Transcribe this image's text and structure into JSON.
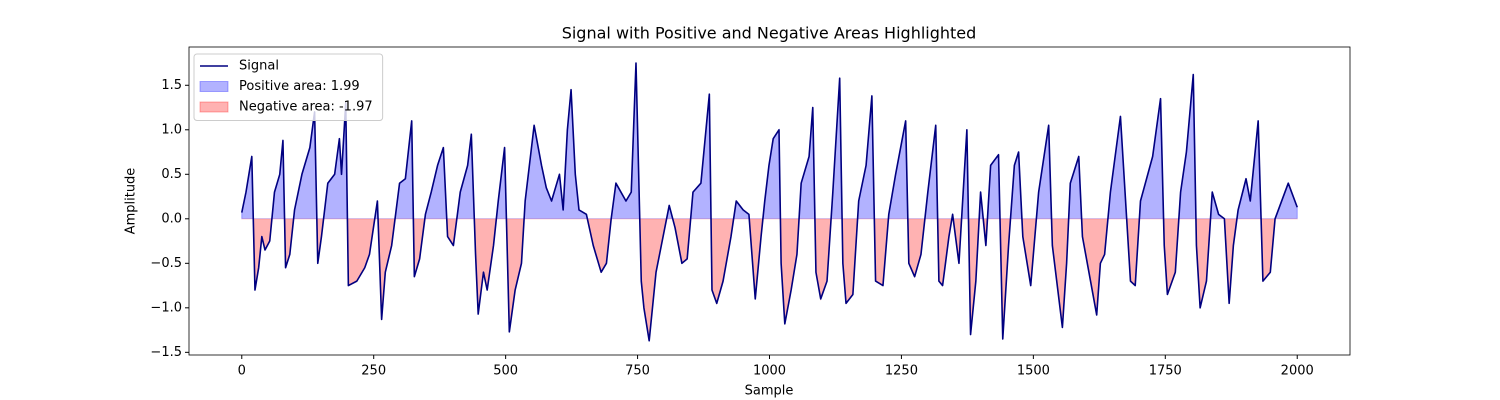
{
  "chart_data": {
    "type": "line",
    "title": "Signal with Positive and Negative Areas Highlighted",
    "xlabel": "Sample",
    "ylabel": "Amplitude",
    "x": [
      0,
      8,
      19,
      25,
      32,
      38,
      44,
      53,
      62,
      72,
      78,
      83,
      91,
      100,
      114,
      129,
      138,
      144,
      151,
      163,
      176,
      185,
      189,
      197,
      202,
      218,
      233,
      242,
      257,
      265,
      272,
      284,
      299,
      310,
      322,
      327,
      337,
      348,
      359,
      371,
      382,
      390,
      401,
      414,
      428,
      435,
      443,
      448,
      458,
      465,
      477,
      486,
      498,
      507,
      518,
      530,
      537,
      549,
      554,
      568,
      577,
      587,
      602,
      609,
      617,
      624,
      632,
      639,
      653,
      666,
      681,
      691,
      700,
      709,
      728,
      738,
      747,
      757,
      762,
      772,
      785,
      795,
      810,
      821,
      834,
      844,
      855,
      870,
      886,
      891,
      900,
      912,
      927,
      937,
      950,
      961,
      973,
      984,
      991,
      999,
      1007,
      1018,
      1022,
      1029,
      1041,
      1052,
      1060,
      1075,
      1082,
      1088,
      1097,
      1109,
      1120,
      1133,
      1139,
      1145,
      1158,
      1169,
      1183,
      1194,
      1201,
      1215,
      1226,
      1239,
      1258,
      1264,
      1275,
      1287,
      1300,
      1315,
      1321,
      1328,
      1340,
      1347,
      1359,
      1374,
      1381,
      1391,
      1400,
      1410,
      1419,
      1434,
      1442,
      1453,
      1464,
      1472,
      1480,
      1495,
      1510,
      1529,
      1536,
      1555,
      1563,
      1570,
      1586,
      1593,
      1620,
      1627,
      1635,
      1646,
      1665,
      1684,
      1693,
      1703,
      1726,
      1741,
      1748,
      1754,
      1769,
      1779,
      1790,
      1803,
      1809,
      1816,
      1828,
      1839,
      1851,
      1862,
      1871,
      1879,
      1888,
      1903,
      1911,
      1926,
      1935,
      1949,
      1958,
      1983,
      2000
    ],
    "series": [
      {
        "name": "Signal",
        "color": "#000080",
        "values": [
          0.07,
          0.3,
          0.7,
          -0.8,
          -0.55,
          -0.2,
          -0.35,
          -0.25,
          0.3,
          0.5,
          0.88,
          -0.55,
          -0.4,
          0.1,
          0.5,
          0.8,
          1.2,
          -0.5,
          -0.2,
          0.4,
          0.5,
          0.9,
          0.5,
          1.3,
          -0.75,
          -0.7,
          -0.55,
          -0.4,
          0.2,
          -1.13,
          -0.6,
          -0.3,
          0.4,
          0.45,
          1.1,
          -0.65,
          -0.45,
          0.05,
          0.3,
          0.6,
          0.8,
          -0.2,
          -0.3,
          0.3,
          0.6,
          0.95,
          -0.4,
          -1.07,
          -0.6,
          -0.8,
          -0.3,
          0.2,
          0.8,
          -1.27,
          -0.8,
          -0.5,
          0.2,
          0.8,
          1.05,
          0.6,
          0.35,
          0.2,
          0.5,
          0.1,
          1.0,
          1.45,
          0.5,
          0.1,
          0.05,
          -0.3,
          -0.6,
          -0.5,
          0.0,
          0.4,
          0.2,
          0.3,
          1.75,
          -0.7,
          -1.0,
          -1.37,
          -0.6,
          -0.3,
          0.15,
          -0.1,
          -0.5,
          -0.45,
          0.3,
          0.4,
          1.4,
          -0.8,
          -0.95,
          -0.7,
          -0.2,
          0.2,
          0.1,
          0.05,
          -0.9,
          -0.2,
          0.2,
          0.6,
          0.9,
          1.0,
          -0.5,
          -1.18,
          -0.8,
          -0.4,
          0.4,
          0.7,
          1.25,
          -0.6,
          -0.9,
          -0.7,
          0.3,
          1.58,
          -0.5,
          -0.95,
          -0.85,
          0.2,
          0.6,
          1.38,
          -0.7,
          -0.75,
          0.05,
          0.5,
          1.1,
          -0.5,
          -0.65,
          -0.4,
          0.3,
          1.05,
          -0.7,
          -0.75,
          -0.2,
          0.05,
          -0.5,
          1.0,
          -1.3,
          -0.7,
          0.3,
          -0.3,
          0.6,
          0.72,
          -1.35,
          -0.3,
          0.6,
          0.75,
          -0.2,
          -0.75,
          0.3,
          1.05,
          -0.3,
          -1.22,
          -0.5,
          0.4,
          0.7,
          -0.2,
          -1.08,
          -0.5,
          -0.4,
          0.3,
          1.15,
          -0.7,
          -0.75,
          0.2,
          0.7,
          1.35,
          -0.3,
          -0.85,
          -0.6,
          0.3,
          0.75,
          1.62,
          -0.3,
          -1.0,
          -0.7,
          0.3,
          0.05,
          0.0,
          -0.95,
          -0.3,
          0.1,
          0.45,
          0.2,
          1.1,
          -0.7,
          -0.6,
          0.0,
          0.4,
          0.13
        ]
      }
    ],
    "fills": [
      {
        "name": "Positive area: 1.99",
        "color": "#0000ff",
        "where": "positive"
      },
      {
        "name": "Negative area: -1.97",
        "color": "#ff0000",
        "where": "negative"
      }
    ],
    "xlim": [
      -100,
      2100
    ],
    "xticks": [
      0,
      250,
      500,
      750,
      1000,
      1250,
      1500,
      1750,
      2000
    ],
    "ylim": [
      -1.53,
      1.93
    ],
    "yticks": [
      {
        "value": -1.5,
        "label": "−1.5"
      },
      {
        "value": -1,
        "label": "−1.0"
      },
      {
        "value": -0.5,
        "label": "−0.5"
      },
      {
        "value": 0,
        "label": "0.0"
      },
      {
        "value": 0.5,
        "label": "0.5"
      },
      {
        "value": 1,
        "label": "1.0"
      },
      {
        "value": 1.5,
        "label": "1.5"
      }
    ],
    "legend": "upper left"
  }
}
